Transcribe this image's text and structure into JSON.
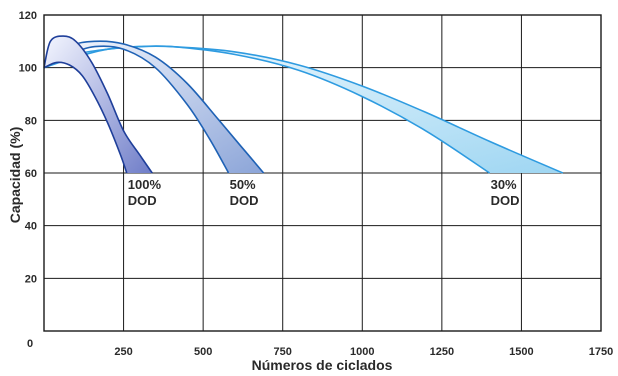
{
  "chart_data": {
    "type": "area",
    "title": "",
    "xlabel": "Números de ciclados",
    "ylabel": "Capacidad (%)",
    "xlim": [
      0,
      1750
    ],
    "ylim": [
      0,
      120
    ],
    "x_ticks": [
      "0",
      "250",
      "500",
      "750",
      "1000",
      "1250",
      "1500",
      "1750"
    ],
    "y_ticks": [
      "20",
      "40",
      "60",
      "80",
      "100",
      "120"
    ],
    "grid": true,
    "series": [
      {
        "label": [
          "100%",
          "DOD"
        ],
        "color": "#1f3f9a",
        "fill_from": "#f4f6ff",
        "fill_to": "#6f7dc8",
        "upper": {
          "x": [
            0,
            20,
            60,
            100,
            150,
            200,
            250,
            300,
            340
          ],
          "y": [
            100,
            110,
            112,
            110,
            102,
            90,
            76,
            67,
            60
          ]
        },
        "lower": {
          "x": [
            0,
            40,
            80,
            120,
            160,
            200,
            240,
            260
          ],
          "y": [
            100,
            102,
            101,
            97,
            89,
            79,
            67,
            60
          ]
        }
      },
      {
        "label": [
          "50%",
          "DOD"
        ],
        "color": "#1f62b5",
        "fill_from": "#f6f9ff",
        "fill_to": "#8ca5d8",
        "upper": {
          "x": [
            0,
            80,
            160,
            250,
            350,
            450,
            550,
            620,
            690
          ],
          "y": [
            100,
            108,
            110,
            109,
            104,
            94,
            80,
            70,
            60
          ]
        },
        "lower": {
          "x": [
            0,
            80,
            160,
            250,
            350,
            450,
            520,
            580
          ],
          "y": [
            100,
            105,
            108,
            107,
            100,
            86,
            73,
            60
          ]
        }
      },
      {
        "label": [
          "30%",
          "DOD"
        ],
        "color": "#2e9be0",
        "fill_from": "#f4fbff",
        "fill_to": "#9fd6f2",
        "upper": {
          "x": [
            0,
            100,
            200,
            300,
            400,
            600,
            800,
            1000,
            1200,
            1400,
            1630
          ],
          "y": [
            100,
            105,
            107,
            108,
            108,
            106,
            101,
            93,
            83,
            72,
            60
          ]
        },
        "lower": {
          "x": [
            0,
            100,
            200,
            300,
            400,
            600,
            800,
            1000,
            1200,
            1400
          ],
          "y": [
            100,
            104,
            107,
            108,
            108,
            105,
            99,
            89,
            76,
            60
          ]
        }
      }
    ]
  }
}
